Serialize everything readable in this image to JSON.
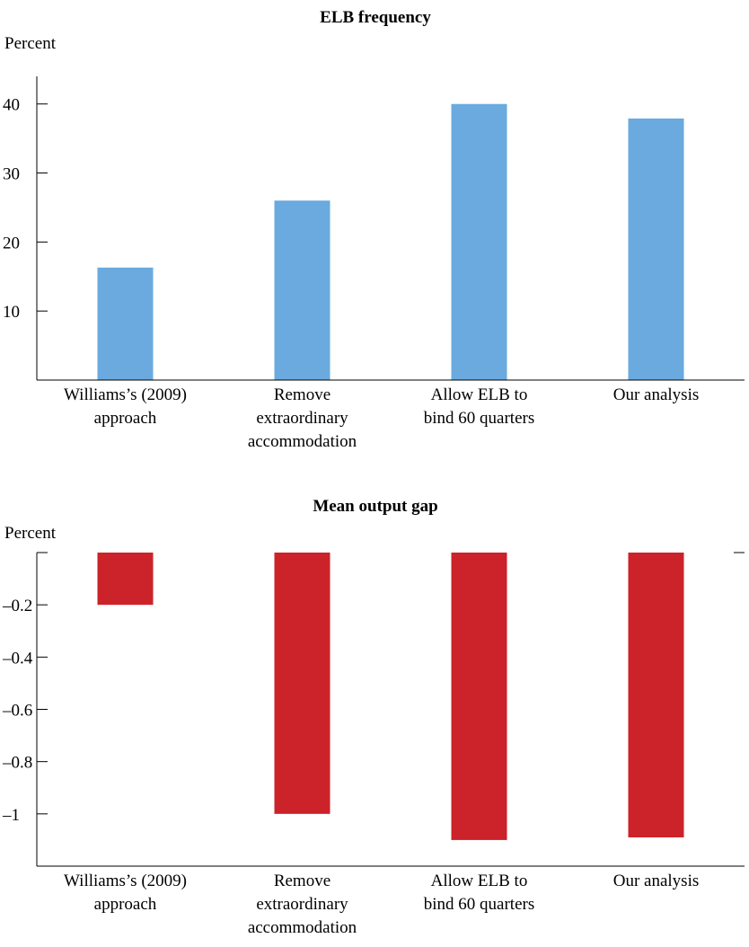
{
  "chart_data": [
    {
      "type": "bar",
      "title": "ELB frequency",
      "ylabel": "Percent",
      "xlabel": "",
      "categories": [
        [
          "Williams’s (2009)",
          "approach"
        ],
        [
          "Remove",
          "extraordinary",
          "accommodation"
        ],
        [
          "Allow ELB to",
          "bind 60 quarters"
        ],
        [
          "Our analysis"
        ]
      ],
      "values": [
        16.3,
        26,
        40,
        37.9
      ],
      "yticks": [
        10,
        20,
        30,
        40
      ],
      "ytick_labels": [
        "10",
        "20",
        "30",
        "40"
      ],
      "ylim": [
        0,
        44
      ],
      "color": "#6aaadf",
      "grid": false,
      "legend": "none"
    },
    {
      "type": "bar",
      "title": "Mean output gap",
      "ylabel": "Percent",
      "xlabel": "",
      "categories": [
        [
          "Williams’s (2009)",
          "approach"
        ],
        [
          "Remove",
          "extraordinary",
          "accommodation"
        ],
        [
          "Allow ELB to",
          "bind 60 quarters"
        ],
        [
          "Our analysis"
        ]
      ],
      "values": [
        -0.2,
        -1.0,
        -1.1,
        -1.09
      ],
      "yticks": [
        -0.2,
        -0.4,
        -0.6,
        -0.8,
        -1
      ],
      "ytick_labels": [
        "–0.2",
        "–0.4",
        "–0.6",
        "–0.8",
        "–1"
      ],
      "ylim": [
        -1.2,
        0
      ],
      "color": "#cc2229",
      "grid": false,
      "legend": "none"
    }
  ]
}
